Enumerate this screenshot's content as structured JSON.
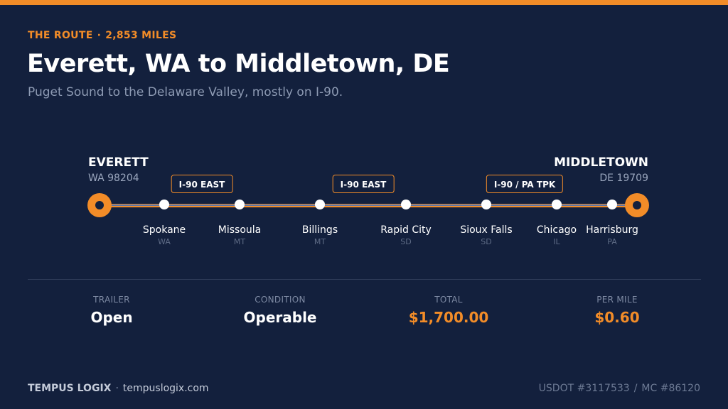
{
  "header": {
    "eyebrow_label": "THE ROUTE",
    "eyebrow_separator": "·",
    "eyebrow_distance": "2,853 MILES",
    "title": "Everett, WA to Middletown, DE",
    "subtitle": "Puget Sound to the Delaware Valley, mostly on I-90."
  },
  "route": {
    "origin": {
      "name": "EVERETT",
      "detail": "WA 98204"
    },
    "destination": {
      "name": "MIDDLETOWN",
      "detail": "DE 19709"
    },
    "highway_badges": [
      "I-90 EAST",
      "I-90 EAST",
      "I-90 / PA TPK"
    ],
    "stops": [
      {
        "city": "Spokane",
        "state": "WA"
      },
      {
        "city": "Missoula",
        "state": "MT"
      },
      {
        "city": "Billings",
        "state": "MT"
      },
      {
        "city": "Rapid City",
        "state": "SD"
      },
      {
        "city": "Sioux Falls",
        "state": "SD"
      },
      {
        "city": "Chicago",
        "state": "IL"
      },
      {
        "city": "Harrisburg",
        "state": "PA"
      }
    ]
  },
  "stats": {
    "trailer": {
      "label": "TRAILER",
      "value": "Open"
    },
    "condition": {
      "label": "CONDITION",
      "value": "Operable"
    },
    "total": {
      "label": "TOTAL",
      "value": "$1,700.00"
    },
    "per_mile": {
      "label": "PER MILE",
      "value": "$0.60"
    }
  },
  "footer": {
    "brand": "TEMPUS LOGIX",
    "separator": "·",
    "website": "tempuslogix.com",
    "usdot": "USDOT #3117533",
    "divider": "/",
    "mc": "MC #86120"
  },
  "colors": {
    "background": "#13203d",
    "accent": "#f28c28",
    "route_line_inner": "#5b75a8",
    "muted_text": "#8d9ab3"
  }
}
